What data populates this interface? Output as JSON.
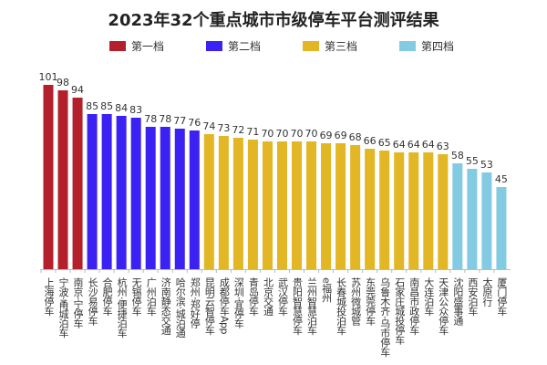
{
  "chart_data": {
    "type": "bar",
    "title": "2023年32个重点城市市级停车平台测评结果",
    "categories": [
      "上海停车",
      "宁波·甬城泊车",
      "南京·宁停车",
      "长沙易停车",
      "合肥停车",
      "杭州·便捷泊车",
      "无锡停车",
      "广州泊车",
      "济南静态交通",
      "哈尔滨·城泊通",
      "郑州·郑好停",
      "昆明云智停车",
      "成都停车App",
      "深圳·宜停车",
      "青岛停车",
      "北京交通",
      "武汉停车",
      "贵阳智慧停车",
      "兰州智慧泊车",
      "e福州",
      "长春城投泊车",
      "苏州微城管",
      "东莞莞停车",
      "乌鲁木齐·乌市停车",
      "石家庄城投停车",
      "南昌市政停车",
      "大连泊车",
      "天津公众停车",
      "沈阳盛事通",
      "西安泊车",
      "太原行",
      "厦门停车"
    ],
    "values": [
      101,
      98,
      94,
      85,
      85,
      84,
      83,
      78,
      78,
      77,
      76,
      74,
      73,
      72,
      71,
      70,
      70,
      70,
      70,
      69,
      69,
      68,
      66,
      65,
      64,
      64,
      64,
      63,
      58,
      55,
      53,
      45
    ],
    "tiers": [
      0,
      0,
      0,
      1,
      1,
      1,
      1,
      1,
      1,
      1,
      1,
      2,
      2,
      2,
      2,
      2,
      2,
      2,
      2,
      2,
      2,
      2,
      2,
      2,
      2,
      2,
      2,
      2,
      3,
      3,
      3,
      3
    ],
    "legend": [
      {
        "name": "第一档",
        "color": "#b3202c"
      },
      {
        "name": "第二档",
        "color": "#3b22f2"
      },
      {
        "name": "第三档",
        "color": "#e2b624"
      },
      {
        "name": "第四档",
        "color": "#82cbe2"
      }
    ],
    "legend_position": "top",
    "grid": false,
    "xlabel": "",
    "ylabel": ""
  }
}
